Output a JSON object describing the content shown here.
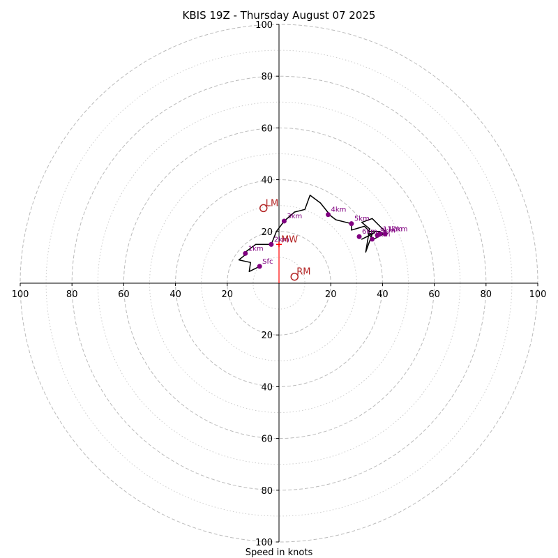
{
  "chart_data": {
    "type": "hodograph",
    "title": "KBIS 19Z - Thursday August 07 2025",
    "xlabel": "Speed in knots",
    "max_speed": 100,
    "rings_major": [
      20,
      40,
      60,
      80,
      100
    ],
    "rings_minor": [
      10,
      30,
      50,
      70,
      90
    ],
    "x_ticks": [
      {
        "value": -100,
        "label": "100"
      },
      {
        "value": -80,
        "label": "80"
      },
      {
        "value": -60,
        "label": "60"
      },
      {
        "value": -40,
        "label": "40"
      },
      {
        "value": -20,
        "label": "20"
      },
      {
        "value": 20,
        "label": "20"
      },
      {
        "value": 40,
        "label": "40"
      },
      {
        "value": 60,
        "label": "60"
      },
      {
        "value": 80,
        "label": "80"
      },
      {
        "value": 100,
        "label": "100"
      }
    ],
    "y_ticks": [
      {
        "value": 100,
        "label": "100"
      },
      {
        "value": 80,
        "label": "80"
      },
      {
        "value": 60,
        "label": "60"
      },
      {
        "value": 40,
        "label": "40"
      },
      {
        "value": 20,
        "label": "20"
      },
      {
        "value": -20,
        "label": "20"
      },
      {
        "value": -40,
        "label": "40"
      },
      {
        "value": -60,
        "label": "60"
      },
      {
        "value": -80,
        "label": "80"
      },
      {
        "value": -100,
        "label": "100"
      }
    ],
    "trace": [
      [
        -7.5,
        6.5
      ],
      [
        -11.5,
        4.5
      ],
      [
        -11,
        8
      ],
      [
        -15.5,
        9
      ],
      [
        -13,
        11
      ],
      [
        -13,
        12
      ],
      [
        -9,
        15
      ],
      [
        -3,
        15
      ],
      [
        -1,
        20
      ],
      [
        2,
        24
      ],
      [
        6,
        27.5
      ],
      [
        10,
        28.5
      ],
      [
        12,
        34
      ],
      [
        16,
        31
      ],
      [
        20,
        26
      ],
      [
        22,
        24.5
      ],
      [
        28,
        23
      ],
      [
        28,
        20.5
      ],
      [
        33,
        22
      ],
      [
        35,
        20
      ],
      [
        39,
        20
      ],
      [
        40.5,
        19
      ],
      [
        36.5,
        17
      ],
      [
        34.5,
        19
      ],
      [
        37,
        19.5
      ],
      [
        32,
        17
      ],
      [
        36,
        19
      ],
      [
        33.5,
        12
      ],
      [
        35,
        21
      ],
      [
        32,
        23.5
      ],
      [
        36,
        25
      ],
      [
        39,
        22
      ],
      [
        42,
        19
      ]
    ],
    "height_markers": [
      {
        "label": "Sfc",
        "u": -7.5,
        "v": 6.5
      },
      {
        "label": "1km",
        "u": -13,
        "v": 11.5
      },
      {
        "label": "2km",
        "u": -3,
        "v": 15
      },
      {
        "label": "3km",
        "u": 2,
        "v": 24
      },
      {
        "label": "4km",
        "u": 19,
        "v": 26.5
      },
      {
        "label": "5km",
        "u": 28,
        "v": 23
      },
      {
        "label": "6km",
        "u": 31,
        "v": 18
      },
      {
        "label": "7km",
        "u": 36,
        "v": 17
      },
      {
        "label": "9km",
        "u": 38,
        "v": 18.5
      },
      {
        "label": "11km",
        "u": 39,
        "v": 19
      },
      {
        "label": "12km",
        "u": 41,
        "v": 19
      }
    ],
    "storm_motions": [
      {
        "label": "LM",
        "u": -6,
        "v": 29
      },
      {
        "label": "MW",
        "u": 0,
        "v": 15
      },
      {
        "label": "RM",
        "u": 6,
        "v": 2.5
      }
    ],
    "colors": {
      "trace": "#000000",
      "markers": "#800080",
      "storm": "#b22222",
      "motion_vector": "#ff0000",
      "grid": "#bbbbbb"
    }
  }
}
